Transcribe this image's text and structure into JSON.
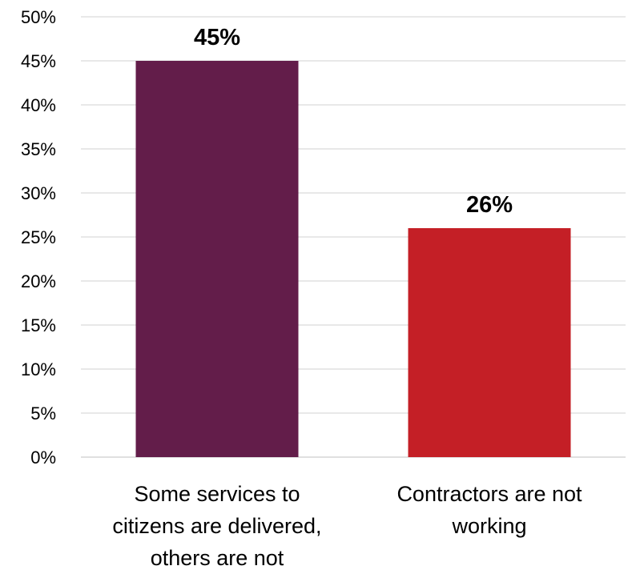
{
  "chart_data": {
    "type": "bar",
    "categories": [
      [
        "Some services to",
        "citizens are delivered,",
        "others are not"
      ],
      [
        "Contractors are not",
        "working"
      ]
    ],
    "values": [
      45,
      26
    ],
    "value_labels": [
      "45%",
      "26%"
    ],
    "colors": [
      "#631d4a",
      "#c41f26"
    ],
    "ylim": [
      0,
      50
    ],
    "yticks": [
      "0%",
      "5%",
      "10%",
      "15%",
      "20%",
      "25%",
      "30%",
      "35%",
      "40%",
      "45%",
      "50%"
    ],
    "grid": true,
    "legend": "none"
  }
}
